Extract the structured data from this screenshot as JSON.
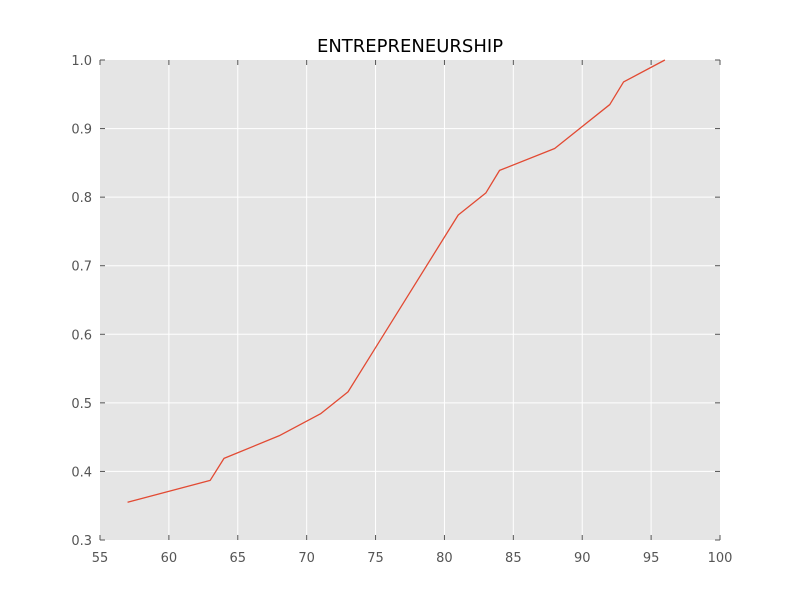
{
  "chart_data": {
    "type": "line",
    "title": "ENTREPRENEURSHIP",
    "xlabel": "",
    "ylabel": "",
    "xlim": [
      55,
      100
    ],
    "ylim": [
      0.3,
      1.0
    ],
    "x_ticks": [
      55,
      60,
      65,
      70,
      75,
      80,
      85,
      90,
      95,
      100
    ],
    "y_ticks": [
      0.3,
      0.4,
      0.5,
      0.6,
      0.7,
      0.8,
      0.9,
      1.0
    ],
    "x_tick_labels": [
      "55",
      "60",
      "65",
      "70",
      "75",
      "80",
      "85",
      "90",
      "95",
      "100"
    ],
    "y_tick_labels": [
      "0.3",
      "0.4",
      "0.5",
      "0.6",
      "0.7",
      "0.8",
      "0.9",
      "1.0"
    ],
    "grid": true,
    "series": [
      {
        "color": "#e24a33",
        "points": [
          [
            57,
            0.355
          ],
          [
            63,
            0.387
          ],
          [
            64,
            0.419
          ],
          [
            68,
            0.452
          ],
          [
            71,
            0.484
          ],
          [
            73,
            0.516
          ],
          [
            81,
            0.774
          ],
          [
            83,
            0.806
          ],
          [
            84,
            0.839
          ],
          [
            88,
            0.871
          ],
          [
            92,
            0.935
          ],
          [
            93,
            0.968
          ],
          [
            96,
            1.0
          ]
        ]
      }
    ]
  },
  "colors": {
    "plot_background": "#e5e5e5",
    "grid": "#ffffff",
    "line": "#e24a33",
    "tick_text": "#555555"
  }
}
